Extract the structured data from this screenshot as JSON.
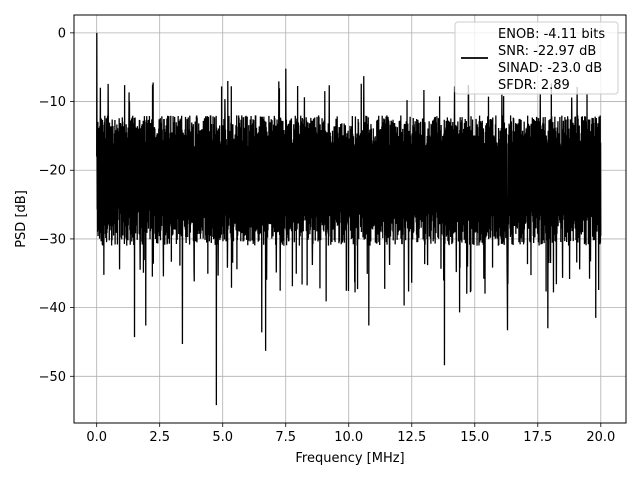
{
  "chart_data": {
    "type": "line",
    "title": "",
    "xlabel": "Frequency [MHz]",
    "ylabel": "PSD [dB]",
    "xlim": [
      -0.9,
      21.0
    ],
    "ylim": [
      -56.8,
      2.6
    ],
    "xticks": [
      0.0,
      2.5,
      5.0,
      7.5,
      10.0,
      12.5,
      15.0,
      17.5,
      20.0
    ],
    "xtick_labels": [
      "0.0",
      "2.5",
      "5.0",
      "7.5",
      "10.0",
      "12.5",
      "15.0",
      "17.5",
      "20.0"
    ],
    "yticks": [
      0,
      -10,
      -20,
      -30,
      -40,
      -50
    ],
    "ytick_labels": [
      "0",
      "−10",
      "−20",
      "−30",
      "−40",
      "−50"
    ],
    "grid": true,
    "legend_position": "top-right",
    "legend": {
      "entries": [
        "ENOB: -4.11 bits",
        "SNR: -22.97 dB",
        "SINAD: -23.0 dB",
        "SFDR: 2.89"
      ]
    },
    "series": [
      {
        "color": "#000000",
        "x_range": [
          0.0,
          20.0
        ],
        "typical_band_db": [
          -31,
          -12
        ],
        "peak": {
          "x": 0.0,
          "y": 0.0
        },
        "minimum": {
          "x": 4.75,
          "y": -54.2
        },
        "notable_dips": [
          {
            "x": 1.5,
            "y": -44.3
          },
          {
            "x": 1.95,
            "y": -42.6
          },
          {
            "x": 3.4,
            "y": -45.3
          },
          {
            "x": 4.75,
            "y": -54.2
          },
          {
            "x": 6.55,
            "y": -43.6
          },
          {
            "x": 6.7,
            "y": -46.3
          },
          {
            "x": 9.1,
            "y": -39.1
          },
          {
            "x": 10.8,
            "y": -42.6
          },
          {
            "x": 12.2,
            "y": -39.7
          },
          {
            "x": 13.8,
            "y": -48.4
          },
          {
            "x": 14.4,
            "y": -40.7
          },
          {
            "x": 16.3,
            "y": -43.3
          },
          {
            "x": 17.9,
            "y": -43.0
          },
          {
            "x": 19.8,
            "y": -41.5
          }
        ],
        "notable_peaks": [
          {
            "x": 0.15,
            "y": -8.0
          },
          {
            "x": 1.3,
            "y": -10.0
          },
          {
            "x": 5.2,
            "y": -7.0
          },
          {
            "x": 7.5,
            "y": -5.2
          },
          {
            "x": 10.6,
            "y": -6.3
          },
          {
            "x": 14.2,
            "y": -7.8
          },
          {
            "x": 17.6,
            "y": -8.9
          }
        ]
      }
    ]
  }
}
